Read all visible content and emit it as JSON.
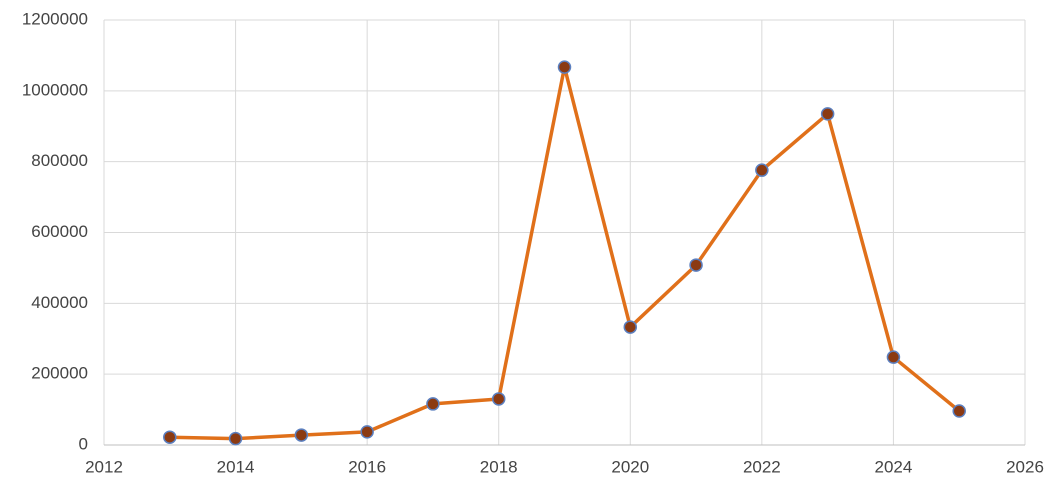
{
  "chart_data": {
    "type": "line",
    "x": [
      2013,
      2014,
      2015,
      2016,
      2017,
      2018,
      2019,
      2020,
      2021,
      2022,
      2023,
      2024,
      2025
    ],
    "series": [
      {
        "color": "#e0701a",
        "marker_color": "#8b3a12",
        "marker_edge": "#5b7fbf",
        "values": [
          22000,
          18000,
          28000,
          37000,
          116000,
          130000,
          1067000,
          333000,
          508000,
          776000,
          935000,
          248000,
          96000
        ]
      }
    ],
    "xlim": [
      2012,
      2026
    ],
    "xticks": [
      2012,
      2014,
      2016,
      2018,
      2020,
      2022,
      2024,
      2026
    ],
    "ylim": [
      0,
      1200000
    ],
    "yticks": [
      0,
      200000,
      400000,
      600000,
      800000,
      1000000,
      1200000
    ],
    "grid": true
  }
}
